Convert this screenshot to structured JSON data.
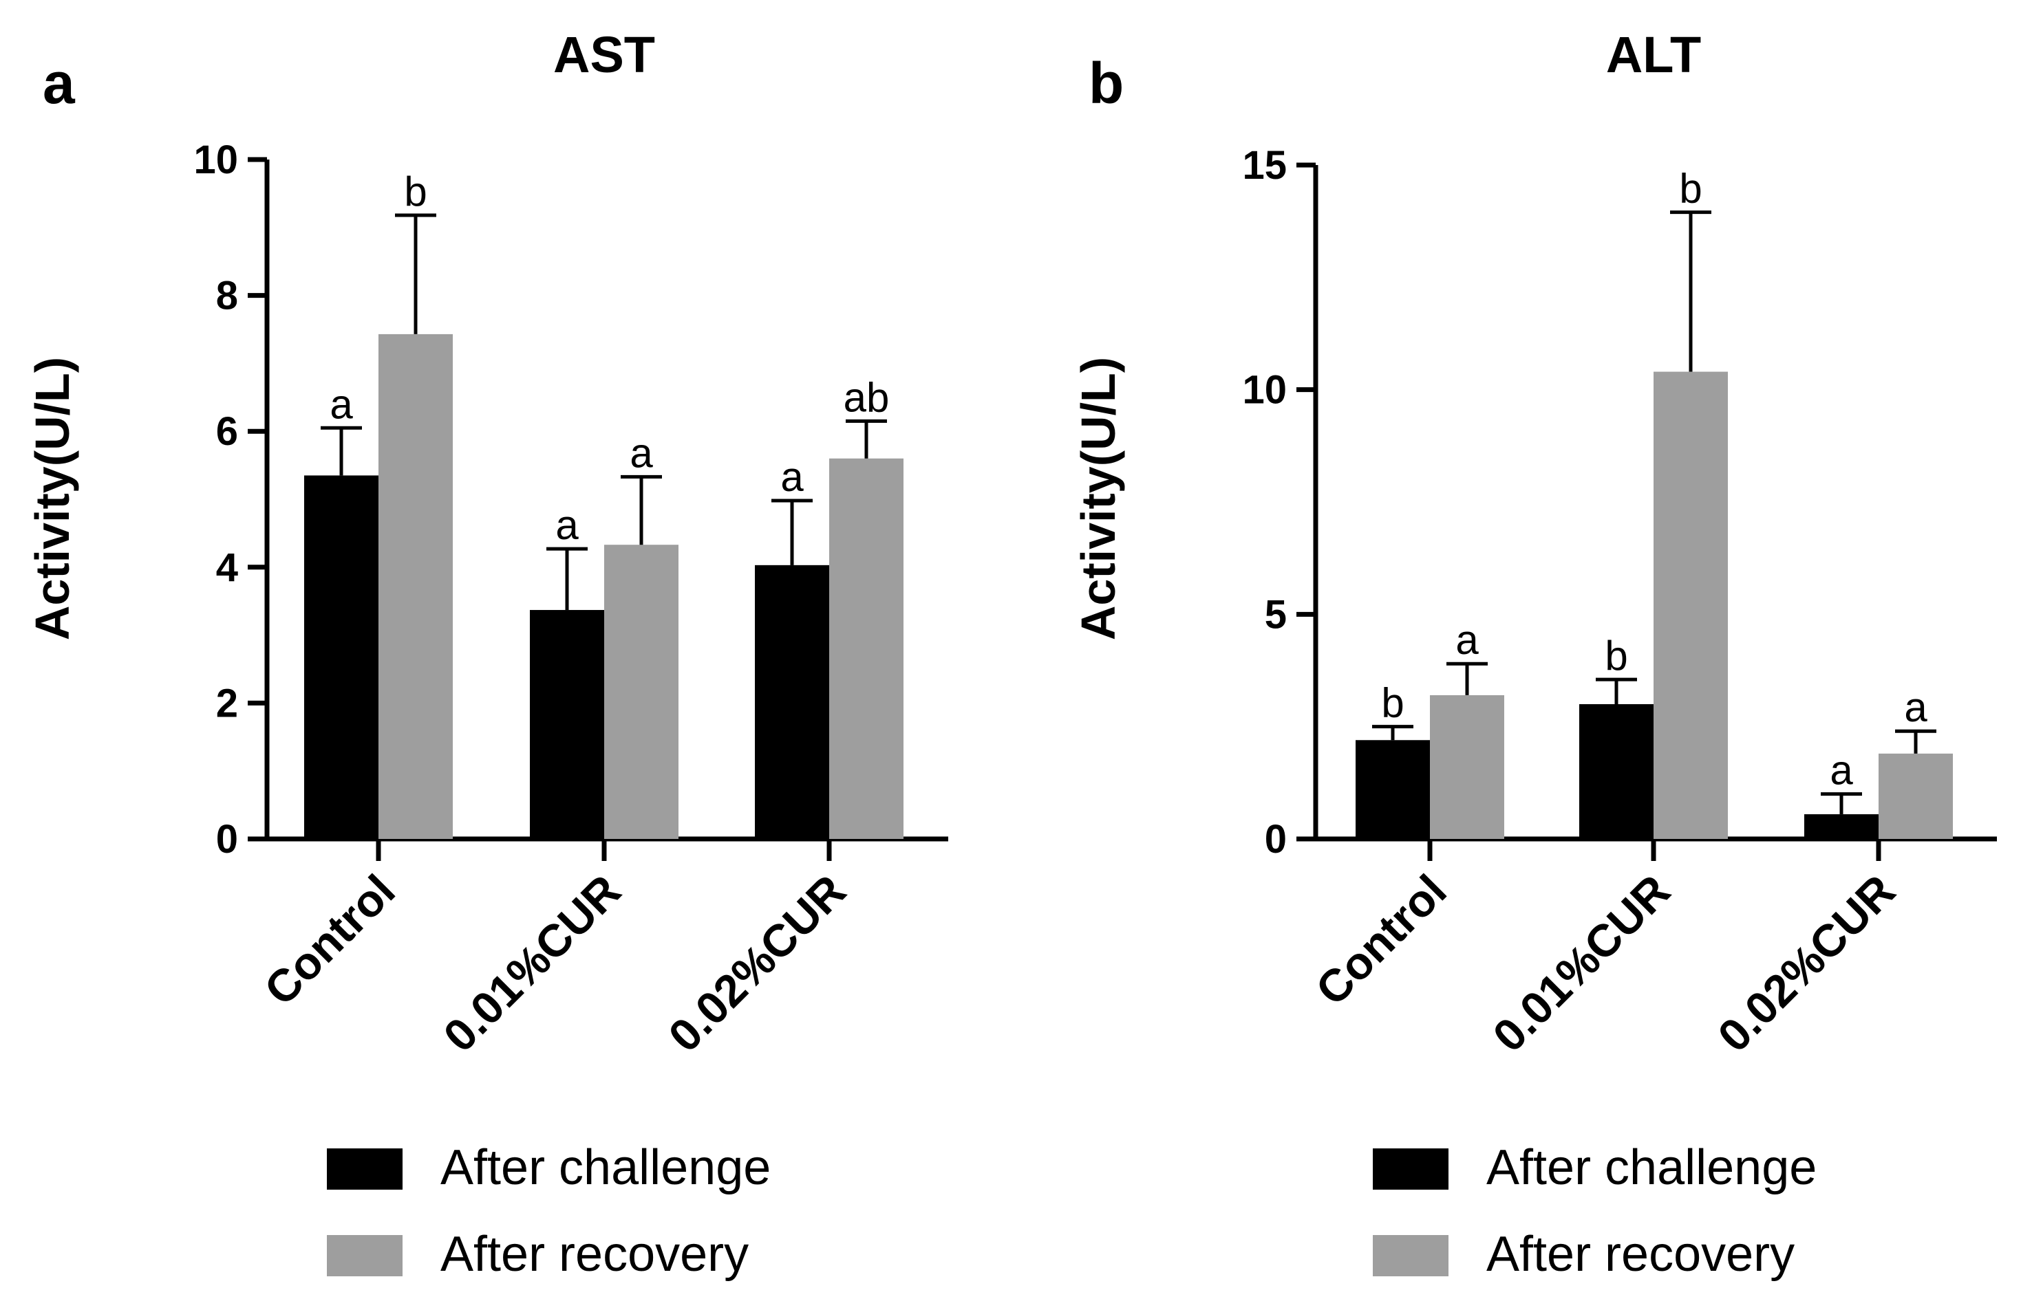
{
  "colors": {
    "after_challenge": "#000000",
    "after_recovery": "#9e9e9e"
  },
  "legend": {
    "series1": "After challenge",
    "series2": "After recovery"
  },
  "chart_data": [
    {
      "type": "bar",
      "panel": "a",
      "title": "AST",
      "xlabel": "",
      "ylabel": "Activity(U/L)",
      "ylim": [
        0,
        10
      ],
      "yticks": [
        "0",
        "2",
        "4",
        "6",
        "8",
        "10"
      ],
      "categories": [
        "Control",
        "0.01%CUR",
        "0.02%CUR"
      ],
      "grid": false,
      "legend_position": "bottom",
      "series": [
        {
          "name": "After challenge",
          "values": [
            5.35,
            3.37,
            4.03
          ],
          "errors": [
            0.7,
            0.9,
            0.95
          ],
          "labels": [
            "a",
            "a",
            "a"
          ]
        },
        {
          "name": "After recovery",
          "values": [
            7.43,
            4.33,
            5.6
          ],
          "errors": [
            1.75,
            1.0,
            0.55
          ],
          "labels": [
            "b",
            "a",
            "ab"
          ]
        }
      ]
    },
    {
      "type": "bar",
      "panel": "b",
      "title": "ALT",
      "xlabel": "",
      "ylabel": "Activity(U/L)",
      "ylim": [
        0,
        15
      ],
      "yticks": [
        "0",
        "5",
        "10",
        "15"
      ],
      "categories": [
        "Control",
        "0.01%CUR",
        "0.02%CUR"
      ],
      "grid": false,
      "legend_position": "bottom",
      "series": [
        {
          "name": "After challenge",
          "values": [
            2.2,
            3.0,
            0.55
          ],
          "errors": [
            0.3,
            0.55,
            0.45
          ],
          "labels": [
            "b",
            "b",
            "a"
          ]
        },
        {
          "name": "After recovery",
          "values": [
            3.2,
            10.4,
            1.9
          ],
          "errors": [
            0.7,
            3.55,
            0.5
          ],
          "labels": [
            "a",
            "b",
            "a"
          ]
        }
      ]
    }
  ]
}
